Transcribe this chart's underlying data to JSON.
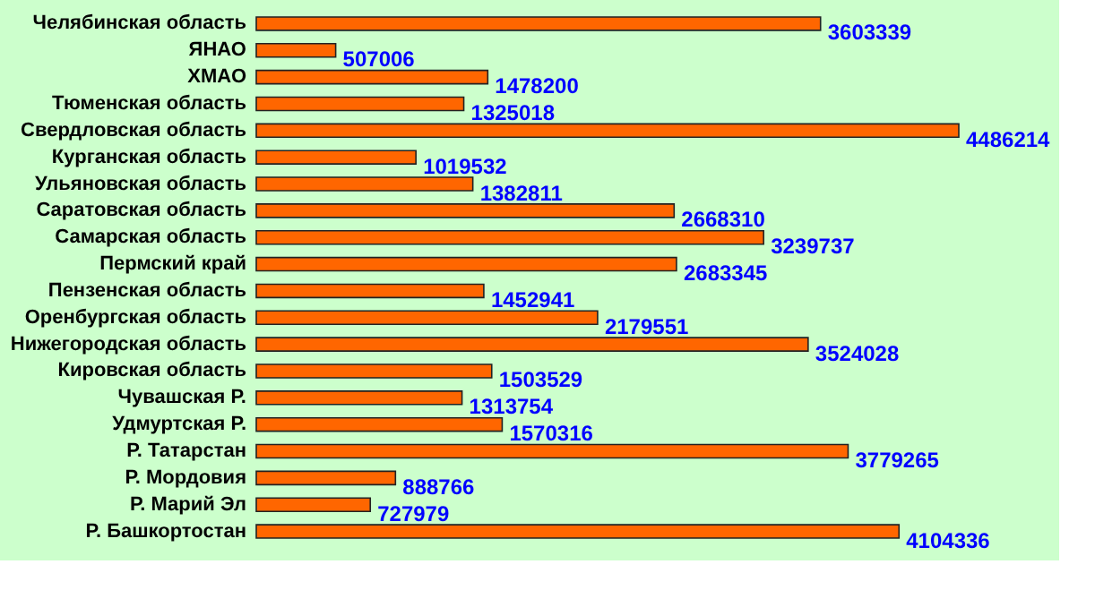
{
  "chart_data": {
    "type": "bar",
    "orientation": "horizontal",
    "data_labels": true,
    "categories": [
      "Челябинская область",
      "ЯНАО",
      "ХМАО",
      "Тюменская область",
      "Свердловская область",
      "Курганская область",
      "Ульяновская область",
      "Саратовская область",
      "Самарская область",
      "Пермский край",
      "Пензенская область",
      "Оренбургская область",
      "Нижегородская область",
      "Кировская область",
      "Чувашская Р.",
      "Удмуртская Р.",
      "Р. Татарстан",
      "Р. Мордовия",
      "Р. Марий Эл",
      "Р. Башкортостан"
    ],
    "values": [
      3603339,
      507006,
      1478200,
      1325018,
      4486214,
      1019532,
      1382811,
      2668310,
      3239737,
      2683345,
      1452941,
      2179551,
      3524028,
      1503529,
      1313754,
      1570316,
      3779265,
      888766,
      727979,
      4104336
    ],
    "color": "#ff6600"
  }
}
